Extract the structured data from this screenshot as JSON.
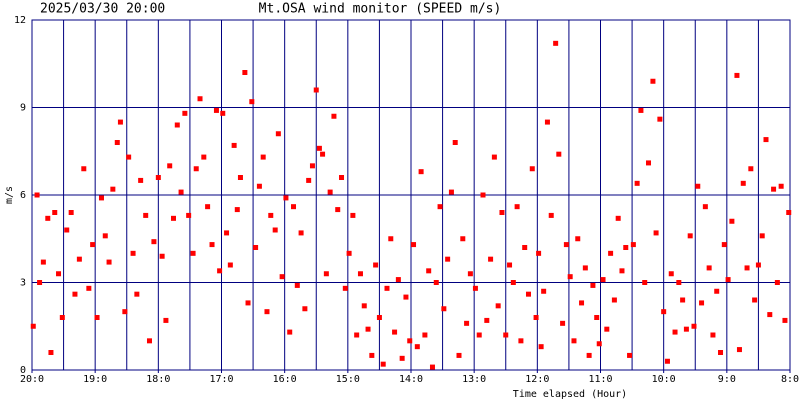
{
  "chart_data": {
    "type": "scatter",
    "date": "2025/03/30 20:00",
    "title": "Mt.OSA wind monitor (SPEED m/s)",
    "y_label": "m/s",
    "x_label": "Time elapsed (Hour)",
    "xlim": [
      0,
      12
    ],
    "ylim": [
      0,
      12
    ],
    "yticks": [
      0,
      3,
      6,
      9,
      12
    ],
    "xticks": [
      {
        "value": 0,
        "label": "20:0"
      },
      {
        "value": 1,
        "label": "19:0"
      },
      {
        "value": 2,
        "label": "18:0"
      },
      {
        "value": 3,
        "label": "17:0"
      },
      {
        "value": 4,
        "label": "16:0"
      },
      {
        "value": 5,
        "label": "15:0"
      },
      {
        "value": 6,
        "label": "14:0"
      },
      {
        "value": 7,
        "label": "13:0"
      },
      {
        "value": 8,
        "label": "12:0"
      },
      {
        "value": 9,
        "label": "11:0"
      },
      {
        "value": 10,
        "label": "10:0"
      },
      {
        "value": 11,
        "label": "9:0"
      },
      {
        "value": 12,
        "label": "8:0"
      }
    ],
    "grid": true,
    "grid_step": 0.5,
    "grid_color": "#000080",
    "color": "#ff0000",
    "x": [
      0.02,
      0.08,
      0.12,
      0.18,
      0.25,
      0.3,
      0.36,
      0.42,
      0.48,
      0.55,
      0.62,
      0.68,
      0.75,
      0.82,
      0.9,
      0.96,
      1.03,
      1.1,
      1.16,
      1.22,
      1.28,
      1.35,
      1.4,
      1.47,
      1.53,
      1.6,
      1.66,
      1.72,
      1.8,
      1.86,
      1.93,
      2.0,
      2.06,
      2.12,
      2.18,
      2.24,
      2.3,
      2.36,
      2.42,
      2.48,
      2.55,
      2.6,
      2.66,
      2.72,
      2.78,
      2.85,
      2.92,
      2.97,
      3.02,
      3.08,
      3.14,
      3.2,
      3.25,
      3.3,
      3.37,
      3.42,
      3.48,
      3.54,
      3.6,
      3.66,
      3.72,
      3.78,
      3.85,
      3.9,
      3.96,
      4.02,
      4.08,
      4.14,
      4.2,
      4.26,
      4.32,
      4.38,
      4.44,
      4.5,
      4.55,
      4.6,
      4.66,
      4.72,
      4.78,
      4.84,
      4.9,
      4.96,
      5.02,
      5.08,
      5.14,
      5.2,
      5.26,
      5.32,
      5.38,
      5.44,
      5.5,
      5.56,
      5.62,
      5.68,
      5.74,
      5.8,
      5.86,
      5.92,
      5.98,
      6.04,
      6.1,
      6.16,
      6.22,
      6.28,
      6.34,
      6.4,
      6.46,
      6.52,
      6.58,
      6.64,
      6.7,
      6.76,
      6.82,
      6.88,
      6.94,
      7.02,
      7.08,
      7.14,
      7.2,
      7.26,
      7.32,
      7.38,
      7.44,
      7.5,
      7.56,
      7.62,
      7.68,
      7.74,
      7.8,
      7.86,
      7.92,
      7.98,
      8.02,
      8.06,
      8.1,
      8.16,
      8.22,
      8.29,
      8.34,
      8.4,
      8.46,
      8.52,
      8.58,
      8.64,
      8.7,
      8.76,
      8.82,
      8.88,
      8.94,
      8.98,
      9.04,
      9.1,
      9.16,
      9.22,
      9.28,
      9.34,
      9.4,
      9.46,
      9.52,
      9.58,
      9.64,
      9.7,
      9.76,
      9.83,
      9.88,
      9.94,
      10.0,
      10.06,
      10.12,
      10.18,
      10.24,
      10.3,
      10.36,
      10.42,
      10.48,
      10.54,
      10.6,
      10.66,
      10.72,
      10.78,
      10.84,
      10.9,
      10.96,
      11.02,
      11.08,
      11.16,
      11.2,
      11.26,
      11.32,
      11.38,
      11.44,
      11.5,
      11.56,
      11.62,
      11.68,
      11.74,
      11.8,
      11.86,
      11.92,
      11.98
    ],
    "values": [
      1.5,
      6.0,
      3.0,
      3.7,
      5.2,
      0.6,
      5.4,
      3.3,
      1.8,
      4.8,
      5.4,
      2.6,
      3.8,
      6.9,
      2.8,
      4.3,
      1.8,
      5.9,
      4.6,
      3.7,
      6.2,
      7.8,
      8.5,
      2.0,
      7.3,
      4.0,
      2.6,
      6.5,
      5.3,
      1.0,
      4.4,
      6.6,
      3.9,
      1.7,
      7.0,
      5.2,
      8.4,
      6.1,
      8.8,
      5.3,
      4.0,
      6.9,
      9.3,
      7.3,
      5.6,
      4.3,
      8.9,
      3.4,
      8.8,
      4.7,
      3.6,
      7.7,
      5.5,
      6.6,
      10.2,
      2.3,
      9.2,
      4.2,
      6.3,
      7.3,
      2.0,
      5.3,
      4.8,
      8.1,
      3.2,
      5.9,
      1.3,
      5.6,
      2.9,
      4.7,
      2.1,
      6.5,
      7.0,
      9.6,
      7.6,
      7.4,
      3.3,
      6.1,
      8.7,
      5.5,
      6.6,
      2.8,
      4.0,
      5.3,
      1.2,
      3.3,
      2.2,
      1.4,
      0.5,
      3.6,
      1.8,
      0.2,
      2.8,
      4.5,
      1.3,
      3.1,
      0.4,
      2.5,
      1.0,
      4.3,
      0.8,
      6.8,
      1.2,
      3.4,
      0.1,
      3.0,
      5.6,
      2.1,
      3.8,
      6.1,
      7.8,
      0.5,
      4.5,
      1.6,
      3.3,
      2.8,
      1.2,
      6.0,
      1.7,
      3.8,
      7.3,
      2.2,
      5.4,
      1.2,
      3.6,
      3.0,
      5.6,
      1.0,
      4.2,
      2.6,
      6.9,
      1.8,
      4.0,
      0.8,
      2.7,
      8.5,
      5.3,
      11.2,
      7.4,
      1.6,
      4.3,
      3.2,
      1.0,
      4.5,
      2.3,
      3.5,
      0.5,
      2.9,
      1.8,
      0.9,
      3.1,
      1.4,
      4.0,
      2.4,
      5.2,
      3.4,
      4.2,
      0.5,
      4.3,
      6.4,
      8.9,
      3.0,
      7.1,
      9.9,
      4.7,
      8.6,
      2.0,
      0.3,
      3.3,
      1.3,
      3.0,
      2.4,
      1.4,
      4.6,
      1.5,
      6.3,
      2.3,
      5.6,
      3.5,
      1.2,
      2.7,
      0.6,
      4.3,
      3.1,
      5.1,
      10.1,
      0.7,
      6.4,
      3.5,
      6.9,
      2.4,
      3.6,
      4.6,
      7.9,
      1.9,
      6.2,
      3.0,
      6.3,
      1.7,
      5.4
    ]
  }
}
